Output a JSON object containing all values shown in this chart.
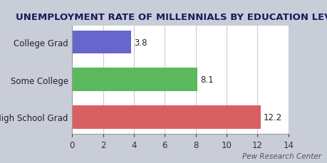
{
  "title": "UNEMPLOYMENT RATE OF MILLENNIALS BY EDUCATION LEVEL",
  "categories": [
    "High School Grad",
    "Some College",
    "College Grad"
  ],
  "values": [
    12.2,
    8.1,
    3.8
  ],
  "bar_colors": [
    "#d96060",
    "#5cb85c",
    "#6666cc"
  ],
  "value_labels": [
    "12.2",
    "8.1",
    "3.8"
  ],
  "xlim": [
    0,
    14
  ],
  "xticks": [
    0,
    2,
    4,
    6,
    8,
    10,
    12,
    14
  ],
  "figure_bg_color": "#c8cdd8",
  "plot_bg_color": "#ffffff",
  "title_fontsize": 9.5,
  "title_color": "#1a1a5e",
  "label_fontsize": 8.5,
  "tick_fontsize": 8.5,
  "value_fontsize": 8.5,
  "annotation": "Pew Research Center",
  "bar_height": 0.62
}
